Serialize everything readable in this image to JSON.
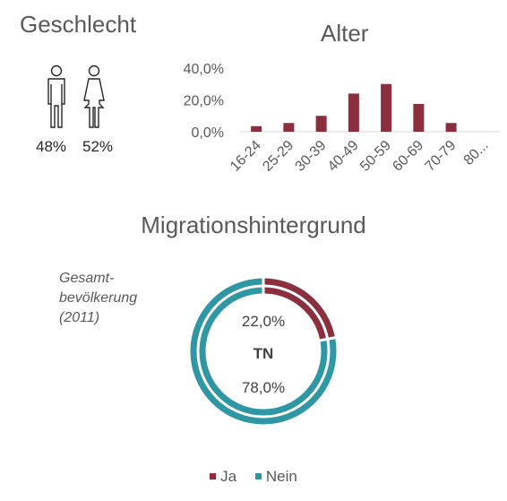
{
  "gender": {
    "title": "Geschlecht",
    "male_pct": "48%",
    "female_pct": "52%"
  },
  "colors": {
    "ja": "#8B2F3E",
    "nein": "#2E97A3",
    "axis": "#D9D9D9",
    "text": "#595959"
  },
  "chart_data": [
    {
      "type": "bar",
      "title": "Alter",
      "categories": [
        "16-24",
        "25-29",
        "30-39",
        "40-49",
        "50-59",
        "60-69",
        "70-79",
        "80..."
      ],
      "values": [
        3.5,
        5.5,
        10.0,
        24.0,
        30.0,
        17.5,
        5.5,
        0
      ],
      "yticks": [
        "0,0%",
        "20,0%",
        "40,0%"
      ],
      "ylim": [
        0,
        40
      ],
      "grid": false
    },
    {
      "type": "pie",
      "title": "Migrationshintergrund",
      "inner_label": "Gesamt-\nbevölkerung\n(2011)",
      "center_label": "TN",
      "labels": [
        "Ja",
        "Nein"
      ],
      "values": [
        22.0,
        78.0
      ],
      "value_labels": [
        "22,0%",
        "78,0%"
      ],
      "legend_position": "bottom"
    }
  ]
}
